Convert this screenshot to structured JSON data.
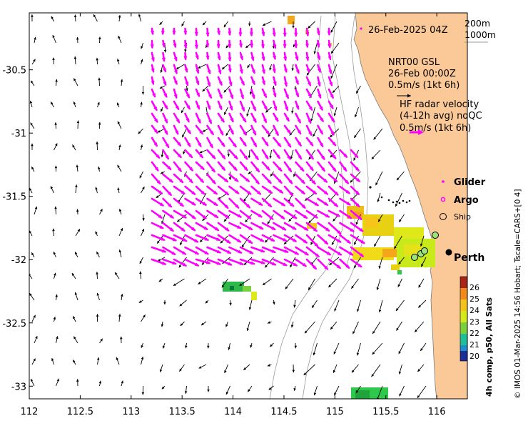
{
  "map": {
    "lon_ticks": [
      "112",
      "112.5",
      "113",
      "113.5",
      "114",
      "114.5",
      "115",
      "115.5",
      "116"
    ],
    "lat_ticks": [
      "-30.5",
      "-31",
      "-31.5",
      "-32",
      "-32.5",
      "-33"
    ],
    "lon_range": [
      112.0,
      116.3
    ],
    "lat_range": [
      -33.1,
      -30.05
    ]
  },
  "legend": {
    "timestamp": "26-Feb-2025 04Z",
    "isobath_200": "200m",
    "isobath_1000": "1000m",
    "model_line1": "NRT00 GSL",
    "model_line2": "26-Feb 00:00Z",
    "model_scale": "0.5m/s (1kt 6h)",
    "radar_line1": "HF radar velocity",
    "radar_line2": "(4-12h avg) noQC",
    "radar_scale": "0.5m/s (1kt 6h)",
    "glider_label": "Glider",
    "argo_label": "Argo",
    "ship_label": "Ship",
    "city_label": "Perth"
  },
  "colorbar": {
    "ticks": [
      "26",
      "25",
      "24",
      "23",
      "22",
      "21",
      "20"
    ],
    "caption": "4h comp, p50, All Sats"
  },
  "credit": "© IMOS 01-Mar-2025 14:56 Hobart; Tscale=CARS+[0 4]",
  "colors": {
    "land": "#fbc898",
    "radar_arrow": "#ff00ff",
    "model_arrow": "#000000",
    "isobath": "#9a9a9a"
  }
}
